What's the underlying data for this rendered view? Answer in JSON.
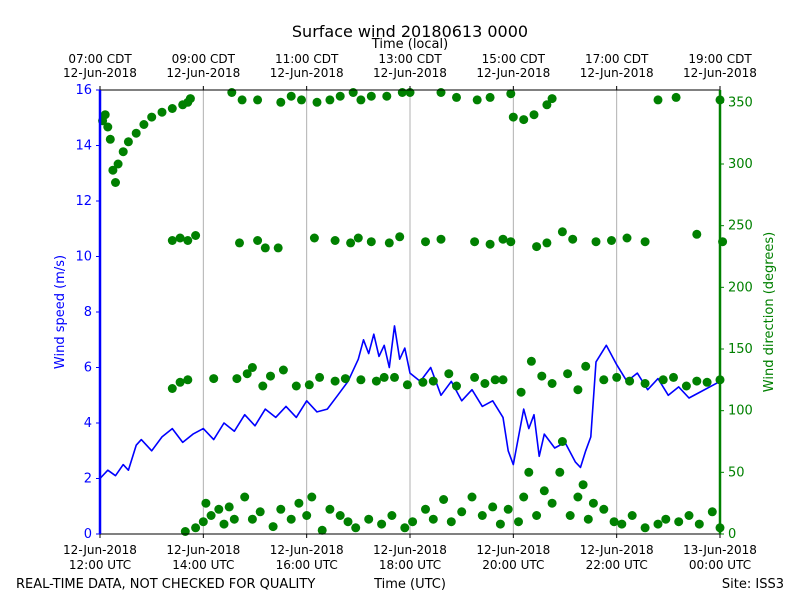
{
  "chart_data": {
    "type": "line+scatter",
    "title": "Surface wind 20180613 0000",
    "top_axis_label": "Time (local)",
    "xlabel": "Time (UTC)",
    "ylabel_left": "Wind speed (m/s)",
    "ylabel_right": "Wind direction (degrees)",
    "footer_left": "REAL-TIME DATA, NOT CHECKED FOR QUALITY",
    "footer_right": "Site: ISS3",
    "x_range_hours": [
      12,
      24
    ],
    "ylim_left": [
      0,
      16
    ],
    "ylim_right": [
      0,
      360
    ],
    "left_ticks": [
      "0",
      "2",
      "4",
      "6",
      "8",
      "10",
      "12",
      "14",
      "16"
    ],
    "right_ticks": [
      "0",
      "50",
      "100",
      "150",
      "200",
      "250",
      "300",
      "350"
    ],
    "bottom_ticks": [
      {
        "line1": "12-Jun-2018",
        "line2": "12:00 UTC"
      },
      {
        "line1": "12-Jun-2018",
        "line2": "14:00 UTC"
      },
      {
        "line1": "12-Jun-2018",
        "line2": "16:00 UTC"
      },
      {
        "line1": "12-Jun-2018",
        "line2": "18:00 UTC"
      },
      {
        "line1": "12-Jun-2018",
        "line2": "20:00 UTC"
      },
      {
        "line1": "12-Jun-2018",
        "line2": "22:00 UTC"
      },
      {
        "line1": "13-Jun-2018",
        "line2": "00:00 UTC"
      }
    ],
    "top_ticks": [
      {
        "line1": "07:00 CDT",
        "line2": "12-Jun-2018"
      },
      {
        "line1": "09:00 CDT",
        "line2": "12-Jun-2018"
      },
      {
        "line1": "11:00 CDT",
        "line2": "12-Jun-2018"
      },
      {
        "line1": "13:00 CDT",
        "line2": "12-Jun-2018"
      },
      {
        "line1": "15:00 CDT",
        "line2": "12-Jun-2018"
      },
      {
        "line1": "17:00 CDT",
        "line2": "12-Jun-2018"
      },
      {
        "line1": "19:00 CDT",
        "line2": "12-Jun-2018"
      }
    ],
    "series": [
      {
        "name": "Wind speed",
        "axis": "left",
        "kind": "line",
        "color": "#0000ff",
        "hours": [
          12.0,
          12.15,
          12.3,
          12.45,
          12.55,
          12.7,
          12.8,
          13.0,
          13.2,
          13.4,
          13.6,
          13.8,
          14.0,
          14.2,
          14.4,
          14.6,
          14.8,
          15.0,
          15.2,
          15.4,
          15.6,
          15.8,
          16.0,
          16.2,
          16.4,
          16.6,
          16.8,
          17.0,
          17.1,
          17.2,
          17.3,
          17.4,
          17.5,
          17.6,
          17.7,
          17.8,
          17.9,
          18.0,
          18.2,
          18.4,
          18.6,
          18.8,
          19.0,
          19.2,
          19.4,
          19.6,
          19.8,
          19.9,
          20.0,
          20.1,
          20.2,
          20.3,
          20.4,
          20.5,
          20.6,
          20.8,
          21.0,
          21.2,
          21.3,
          21.4,
          21.5,
          21.6,
          21.8,
          22.0,
          22.2,
          22.4,
          22.6,
          22.8,
          23.0,
          23.2,
          23.4,
          23.6,
          23.8,
          24.0
        ],
        "values": [
          2.0,
          2.3,
          2.1,
          2.5,
          2.3,
          3.2,
          3.4,
          3.0,
          3.5,
          3.8,
          3.3,
          3.6,
          3.8,
          3.4,
          4.0,
          3.7,
          4.3,
          3.9,
          4.5,
          4.2,
          4.6,
          4.2,
          4.8,
          4.4,
          4.5,
          5.0,
          5.5,
          6.3,
          7.0,
          6.5,
          7.2,
          6.4,
          6.8,
          6.0,
          7.5,
          6.3,
          6.7,
          5.8,
          5.5,
          6.0,
          5.0,
          5.5,
          4.8,
          5.2,
          4.6,
          4.8,
          4.2,
          3.0,
          2.5,
          3.5,
          4.5,
          3.8,
          4.3,
          2.8,
          3.6,
          3.1,
          3.3,
          2.6,
          2.4,
          3.0,
          3.5,
          6.2,
          6.8,
          6.1,
          5.5,
          5.8,
          5.2,
          5.6,
          5.0,
          5.3,
          4.9,
          5.1,
          5.3,
          5.5
        ]
      },
      {
        "name": "Wind direction",
        "axis": "right",
        "kind": "scatter",
        "color": "#008000",
        "points": [
          [
            12.05,
            335
          ],
          [
            12.1,
            340
          ],
          [
            12.15,
            330
          ],
          [
            12.2,
            320
          ],
          [
            12.25,
            295
          ],
          [
            12.3,
            285
          ],
          [
            12.35,
            300
          ],
          [
            12.45,
            310
          ],
          [
            12.55,
            318
          ],
          [
            12.7,
            325
          ],
          [
            12.85,
            332
          ],
          [
            13.0,
            338
          ],
          [
            13.2,
            342
          ],
          [
            13.4,
            345
          ],
          [
            13.6,
            348
          ],
          [
            13.7,
            350
          ],
          [
            13.75,
            353
          ],
          [
            14.55,
            358
          ],
          [
            14.75,
            352
          ],
          [
            15.05,
            352
          ],
          [
            15.5,
            350
          ],
          [
            15.7,
            355
          ],
          [
            15.9,
            352
          ],
          [
            16.2,
            350
          ],
          [
            16.45,
            352
          ],
          [
            16.65,
            355
          ],
          [
            16.9,
            358
          ],
          [
            17.05,
            352
          ],
          [
            17.25,
            355
          ],
          [
            17.55,
            355
          ],
          [
            17.85,
            358
          ],
          [
            18.0,
            358
          ],
          [
            18.6,
            358
          ],
          [
            18.9,
            354
          ],
          [
            19.3,
            352
          ],
          [
            19.55,
            354
          ],
          [
            19.95,
            357
          ],
          [
            20.0,
            338
          ],
          [
            20.2,
            336
          ],
          [
            20.4,
            340
          ],
          [
            20.65,
            348
          ],
          [
            20.75,
            353
          ],
          [
            22.8,
            352
          ],
          [
            23.15,
            354
          ],
          [
            24.0,
            352
          ],
          [
            13.4,
            238
          ],
          [
            13.55,
            240
          ],
          [
            13.7,
            238
          ],
          [
            13.85,
            242
          ],
          [
            14.7,
            236
          ],
          [
            15.05,
            238
          ],
          [
            15.2,
            232
          ],
          [
            15.45,
            232
          ],
          [
            16.15,
            240
          ],
          [
            16.55,
            238
          ],
          [
            16.85,
            236
          ],
          [
            17.0,
            240
          ],
          [
            17.25,
            237
          ],
          [
            17.6,
            236
          ],
          [
            17.8,
            241
          ],
          [
            18.3,
            237
          ],
          [
            18.6,
            239
          ],
          [
            19.25,
            237
          ],
          [
            19.55,
            235
          ],
          [
            19.8,
            239
          ],
          [
            19.95,
            237
          ],
          [
            20.45,
            233
          ],
          [
            20.65,
            236
          ],
          [
            20.95,
            245
          ],
          [
            21.15,
            239
          ],
          [
            21.6,
            237
          ],
          [
            21.9,
            238
          ],
          [
            22.2,
            240
          ],
          [
            22.55,
            237
          ],
          [
            23.55,
            243
          ],
          [
            24.05,
            237
          ],
          [
            13.4,
            118
          ],
          [
            13.55,
            123
          ],
          [
            13.7,
            125
          ],
          [
            14.2,
            126
          ],
          [
            14.65,
            126
          ],
          [
            14.85,
            130
          ],
          [
            14.95,
            135
          ],
          [
            15.15,
            120
          ],
          [
            15.3,
            128
          ],
          [
            15.55,
            133
          ],
          [
            15.8,
            120
          ],
          [
            16.05,
            121
          ],
          [
            16.25,
            127
          ],
          [
            16.55,
            124
          ],
          [
            16.75,
            126
          ],
          [
            17.05,
            125
          ],
          [
            17.35,
            124
          ],
          [
            17.5,
            127
          ],
          [
            17.7,
            127
          ],
          [
            17.95,
            121
          ],
          [
            18.25,
            123
          ],
          [
            18.45,
            124
          ],
          [
            18.75,
            130
          ],
          [
            18.9,
            120
          ],
          [
            19.25,
            127
          ],
          [
            19.45,
            122
          ],
          [
            19.65,
            125
          ],
          [
            19.8,
            125
          ],
          [
            20.15,
            115
          ],
          [
            20.35,
            140
          ],
          [
            20.55,
            128
          ],
          [
            20.75,
            122
          ],
          [
            21.05,
            130
          ],
          [
            21.25,
            117
          ],
          [
            21.4,
            136
          ],
          [
            21.75,
            125
          ],
          [
            22.0,
            127
          ],
          [
            22.25,
            124
          ],
          [
            22.55,
            122
          ],
          [
            22.9,
            125
          ],
          [
            23.1,
            127
          ],
          [
            23.35,
            120
          ],
          [
            23.55,
            124
          ],
          [
            23.75,
            123
          ],
          [
            24.0,
            125
          ],
          [
            13.65,
            2
          ],
          [
            13.85,
            5
          ],
          [
            14.0,
            10
          ],
          [
            14.05,
            25
          ],
          [
            14.15,
            15
          ],
          [
            14.3,
            20
          ],
          [
            14.4,
            8
          ],
          [
            14.5,
            22
          ],
          [
            14.6,
            12
          ],
          [
            14.8,
            30
          ],
          [
            14.95,
            12
          ],
          [
            15.1,
            18
          ],
          [
            15.35,
            6
          ],
          [
            15.5,
            20
          ],
          [
            15.7,
            12
          ],
          [
            15.85,
            25
          ],
          [
            16.0,
            15
          ],
          [
            16.1,
            30
          ],
          [
            16.3,
            3
          ],
          [
            16.45,
            20
          ],
          [
            16.65,
            15
          ],
          [
            16.8,
            10
          ],
          [
            16.95,
            5
          ],
          [
            17.2,
            12
          ],
          [
            17.45,
            8
          ],
          [
            17.65,
            15
          ],
          [
            17.9,
            5
          ],
          [
            18.05,
            10
          ],
          [
            18.3,
            20
          ],
          [
            18.45,
            12
          ],
          [
            18.65,
            28
          ],
          [
            18.8,
            10
          ],
          [
            19.0,
            18
          ],
          [
            19.2,
            30
          ],
          [
            19.4,
            15
          ],
          [
            19.6,
            22
          ],
          [
            19.75,
            8
          ],
          [
            19.9,
            20
          ],
          [
            20.1,
            10
          ],
          [
            20.2,
            30
          ],
          [
            20.3,
            50
          ],
          [
            20.45,
            15
          ],
          [
            20.6,
            35
          ],
          [
            20.75,
            25
          ],
          [
            20.9,
            50
          ],
          [
            20.95,
            75
          ],
          [
            21.1,
            15
          ],
          [
            21.25,
            30
          ],
          [
            21.35,
            40
          ],
          [
            21.45,
            12
          ],
          [
            21.55,
            25
          ],
          [
            21.75,
            20
          ],
          [
            21.95,
            10
          ],
          [
            22.1,
            8
          ],
          [
            22.3,
            15
          ],
          [
            22.55,
            5
          ],
          [
            22.8,
            8
          ],
          [
            22.95,
            12
          ],
          [
            23.2,
            10
          ],
          [
            23.4,
            15
          ],
          [
            23.6,
            8
          ],
          [
            23.85,
            18
          ],
          [
            24.0,
            5
          ]
        ]
      }
    ]
  }
}
